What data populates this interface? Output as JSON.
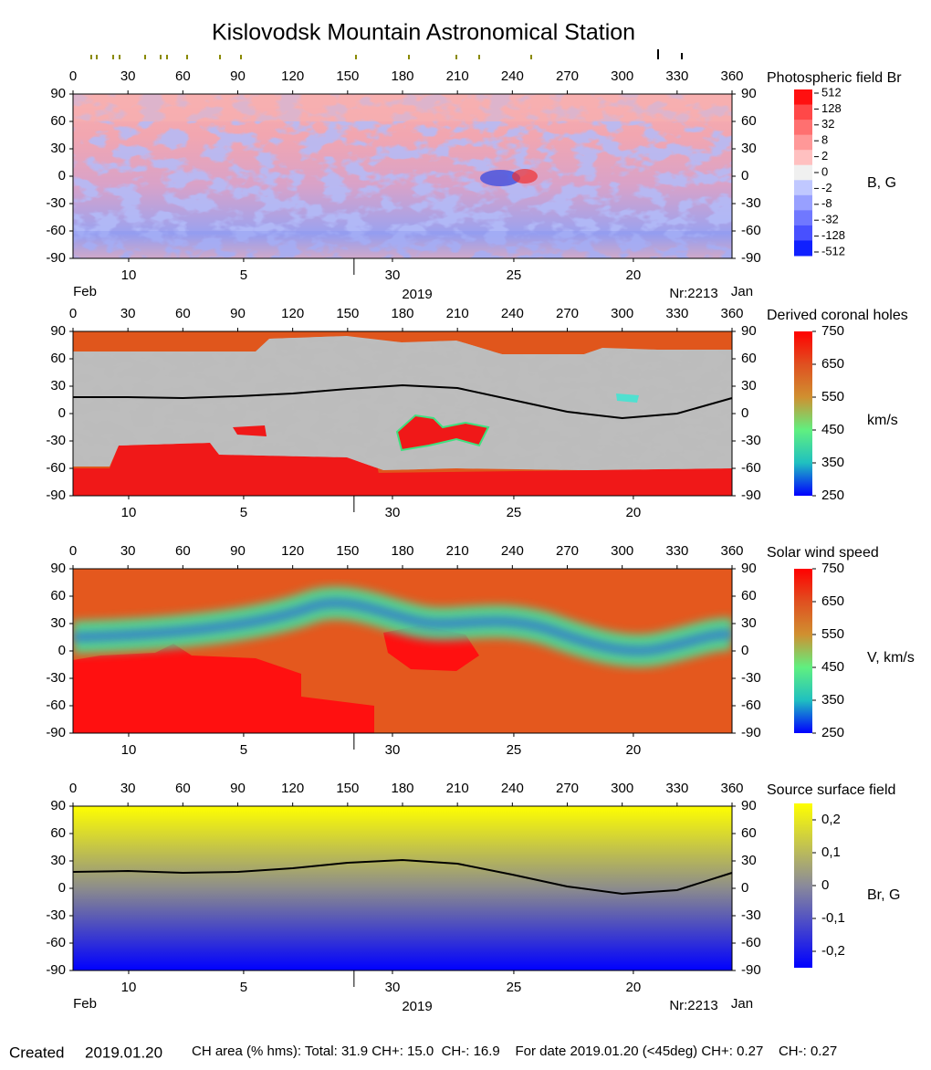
{
  "title": "Kislovodsk Mountain Astronomical Station",
  "footer": {
    "created_label": "Created",
    "created_date": "2019.01.20",
    "stats": "CH area (% hms): Total: 31.9 CH+: 15.0  CH-: 16.9    For date 2019.01.20 (<45deg) CH+: 0.27    CH-: 0.27"
  },
  "chart_data": [
    {
      "type": "heatmap",
      "title": "Photospheric field Br",
      "colorbar_label": "B, G",
      "xlim": [
        0,
        360
      ],
      "xticks": [
        0,
        30,
        60,
        90,
        120,
        150,
        180,
        210,
        240,
        270,
        300,
        330,
        360
      ],
      "ylim": [
        -90,
        90
      ],
      "yticks": [
        90,
        60,
        30,
        0,
        -30,
        -60,
        -90
      ],
      "date_ticks": [
        {
          "value": 30.4,
          "label": "10"
        },
        {
          "value": 93.2,
          "label": "5"
        },
        {
          "value": 174.5,
          "label": "30"
        },
        {
          "value": 240.8,
          "label": "25"
        },
        {
          "value": 306.1,
          "label": "20"
        }
      ],
      "month_boundary": 153.5,
      "bottom_left": "Feb",
      "year": "2019",
      "rotation": "Nr:2213",
      "bottom_right": "Jan",
      "colorbar_ticks": [
        512,
        128,
        32,
        8,
        2,
        0,
        -2,
        -8,
        -32,
        -128,
        -512
      ],
      "colormap": [
        "#ff1010",
        "#ff4848",
        "#ff7070",
        "#ff9898",
        "#ffc0c0",
        "#f0f0f0",
        "#c0c8ff",
        "#98a0ff",
        "#7078ff",
        "#4850ff",
        "#1020ff"
      ]
    },
    {
      "type": "heatmap",
      "title": "Derived coronal holes",
      "colorbar_label": "km/s",
      "xlim": [
        0,
        360
      ],
      "xticks": [
        0,
        30,
        60,
        90,
        120,
        150,
        180,
        210,
        240,
        270,
        300,
        330,
        360
      ],
      "ylim": [
        -90,
        90
      ],
      "yticks": [
        90,
        60,
        30,
        0,
        -30,
        -60,
        -90
      ],
      "date_ticks": [
        {
          "value": 30.4,
          "label": "10"
        },
        {
          "value": 93.2,
          "label": "5"
        },
        {
          "value": 174.5,
          "label": "30"
        },
        {
          "value": 240.8,
          "label": "25"
        },
        {
          "value": 306.1,
          "label": "20"
        }
      ],
      "month_boundary": 153.5,
      "colorbar_lim": [
        250,
        750
      ],
      "colorbar_ticks": [
        750,
        650,
        550,
        450,
        350,
        250
      ],
      "colormap": [
        "#0000ff",
        "#20c0c0",
        "#60f080",
        "#d09030",
        "#e05020",
        "#ff0000"
      ],
      "line": {
        "x": [
          0,
          30,
          60,
          90,
          120,
          150,
          180,
          210,
          240,
          270,
          300,
          330,
          360
        ],
        "values": [
          18,
          18,
          17,
          19,
          22,
          27,
          31,
          28,
          15,
          2,
          -5,
          0,
          17
        ]
      }
    },
    {
      "type": "heatmap",
      "title": "Solar wind speed",
      "colorbar_label": "V, km/s",
      "xlim": [
        0,
        360
      ],
      "xticks": [
        0,
        30,
        60,
        90,
        120,
        150,
        180,
        210,
        240,
        270,
        300,
        330,
        360
      ],
      "ylim": [
        -90,
        90
      ],
      "yticks": [
        90,
        60,
        30,
        0,
        -30,
        -60,
        -90
      ],
      "date_ticks": [
        {
          "value": 30.4,
          "label": "10"
        },
        {
          "value": 93.2,
          "label": "5"
        },
        {
          "value": 174.5,
          "label": "30"
        },
        {
          "value": 240.8,
          "label": "25"
        },
        {
          "value": 306.1,
          "label": "20"
        }
      ],
      "month_boundary": 153.5,
      "colorbar_lim": [
        250,
        750
      ],
      "colorbar_ticks": [
        750,
        650,
        550,
        450,
        350,
        250
      ],
      "colormap": [
        "#0000ff",
        "#20c0c0",
        "#60f080",
        "#d09030",
        "#e05020",
        "#ff0000"
      ]
    },
    {
      "type": "heatmap",
      "title": "Source surface field",
      "colorbar_label": "Br, G",
      "xlim": [
        0,
        360
      ],
      "xticks": [
        0,
        30,
        60,
        90,
        120,
        150,
        180,
        210,
        240,
        270,
        300,
        330,
        360
      ],
      "ylim": [
        -90,
        90
      ],
      "yticks": [
        90,
        60,
        30,
        0,
        -30,
        -60,
        -90
      ],
      "date_ticks": [
        {
          "value": 30.4,
          "label": "10"
        },
        {
          "value": 93.2,
          "label": "5"
        },
        {
          "value": 174.5,
          "label": "30"
        },
        {
          "value": 240.8,
          "label": "25"
        },
        {
          "value": 306.1,
          "label": "20"
        }
      ],
      "month_boundary": 153.5,
      "bottom_left": "Feb",
      "year": "2019",
      "rotation": "Nr:2213",
      "bottom_right": "Jan",
      "colorbar_lim": [
        -0.25,
        0.25
      ],
      "colorbar_ticks": [
        {
          "value": 0.2,
          "label": "0,2"
        },
        {
          "value": 0.1,
          "label": "0,1"
        },
        0,
        {
          "value": -0.1,
          "label": "-0,1"
        },
        {
          "value": -0.2,
          "label": "-0,2"
        }
      ],
      "colormap": [
        "#0000ff",
        "#8a8a9a",
        "#ffff00"
      ],
      "line": {
        "x": [
          0,
          30,
          60,
          90,
          120,
          150,
          180,
          210,
          240,
          270,
          300,
          330,
          360
        ],
        "values": [
          18,
          19,
          17,
          18,
          22,
          28,
          31,
          27,
          15,
          2,
          -6,
          -2,
          17
        ]
      }
    }
  ]
}
